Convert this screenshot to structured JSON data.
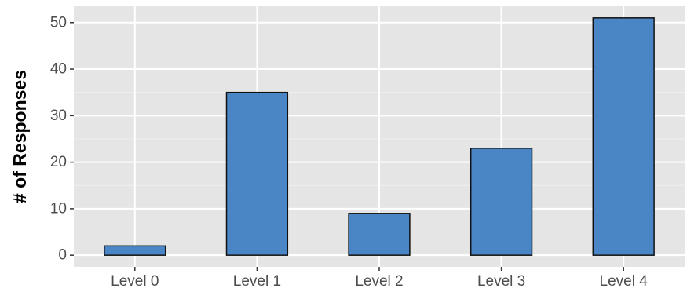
{
  "chart_data": {
    "type": "bar",
    "title": "",
    "xlabel": "",
    "ylabel": "# of Responses",
    "categories": [
      "Level 0",
      "Level 1",
      "Level 2",
      "Level 3",
      "Level 4"
    ],
    "values": [
      2,
      35,
      9,
      23,
      51
    ],
    "ylim": [
      -2.5,
      53.5
    ],
    "yticks": [
      0,
      10,
      20,
      30,
      40,
      50
    ],
    "grid": true,
    "legend": "none",
    "colors": {
      "bar_fill": "#4a86c5",
      "bar_stroke": "#111111",
      "panel_background": "#e5e5e5",
      "grid_major": "#ffffff",
      "grid_minor": "#f0f0f0",
      "tick_label": "#4d4d4d"
    }
  }
}
